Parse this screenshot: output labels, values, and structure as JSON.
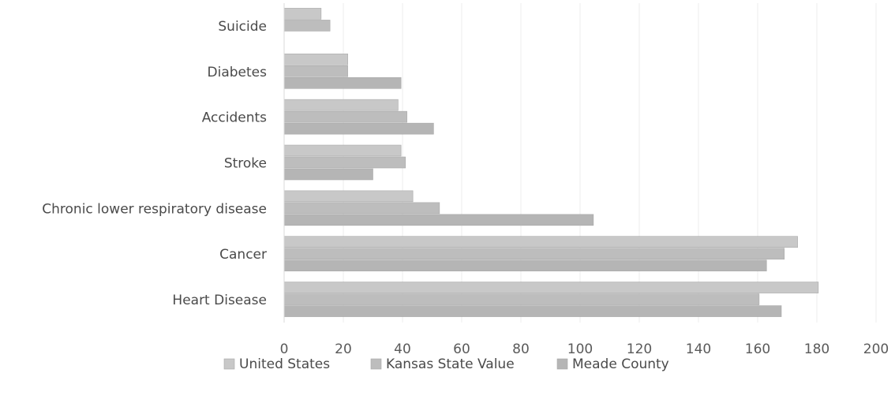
{
  "chart_data": {
    "type": "bar",
    "orientation": "horizontal",
    "categories": [
      "Suicide",
      "Diabetes",
      "Accidents",
      "Stroke",
      "Chronic lower respiratory disease",
      "Cancer",
      "Heart Disease"
    ],
    "series": [
      {
        "name": "United States",
        "color": "#c8c8c8",
        "values": [
          12.5,
          21.5,
          38.5,
          39.5,
          43.5,
          173.5,
          180.5
        ]
      },
      {
        "name": "Kansas State Value",
        "color": "#bdbdbd",
        "values": [
          15.5,
          21.5,
          41.5,
          41.0,
          52.5,
          169.0,
          160.5
        ]
      },
      {
        "name": "Meade County",
        "color": "#b5b5b5",
        "values": [
          null,
          39.5,
          50.5,
          30.0,
          104.5,
          163.0,
          168.0
        ]
      }
    ],
    "xlim": [
      0,
      200
    ],
    "ticks": [
      "0",
      "20",
      "40",
      "60",
      "80",
      "100",
      "120",
      "140",
      "160",
      "180",
      "200"
    ],
    "grid": true,
    "legend_position": "bottom"
  }
}
